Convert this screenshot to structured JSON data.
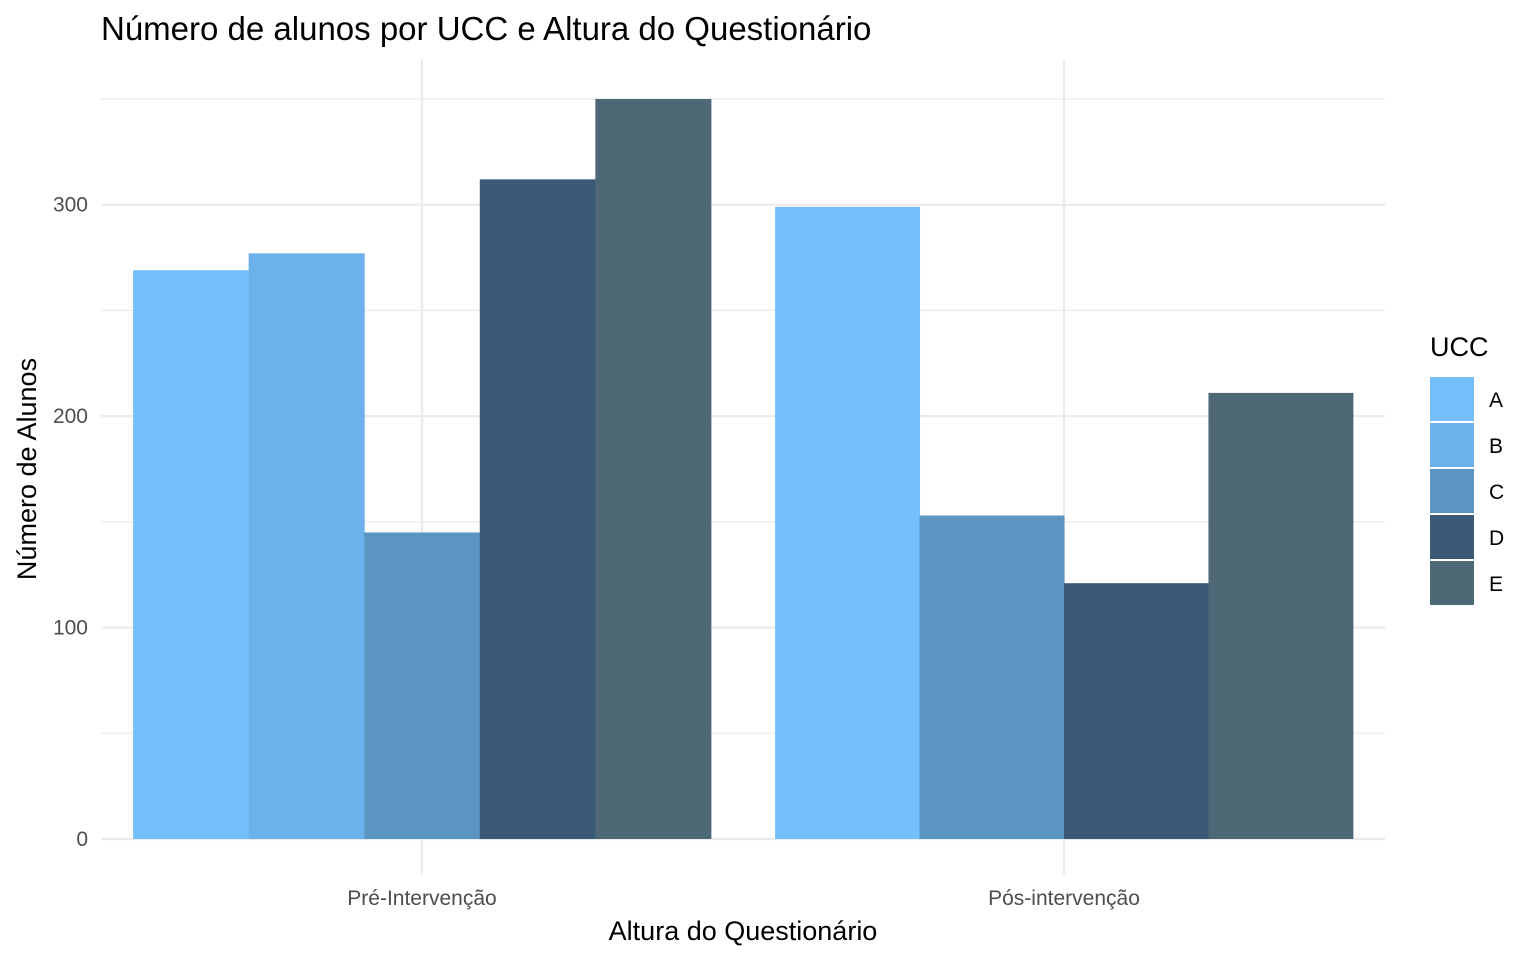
{
  "chart_data": {
    "type": "bar",
    "title": "Número de alunos por UCC e Altura do Questionário",
    "xlabel": "Altura do Questionário",
    "ylabel": "Número de Alunos",
    "ylim": [
      0,
      350
    ],
    "y_ticks": [
      0,
      100,
      200,
      300
    ],
    "grid": true,
    "legend": {
      "title": "UCC",
      "placement": "right"
    },
    "categories": [
      "Pré-Intervenção",
      "Pós-intervenção"
    ],
    "series": [
      {
        "name": "A",
        "color": "#74bffc",
        "values": [
          269,
          299
        ]
      },
      {
        "name": "B",
        "color": "#6cb0ec",
        "values": [
          277,
          null
        ]
      },
      {
        "name": "C",
        "color": "#5b96c2",
        "values": [
          145,
          153
        ]
      },
      {
        "name": "D",
        "color": "#3a5a78",
        "values": [
          312,
          121
        ]
      },
      {
        "name": "E",
        "color": "#4e6876",
        "values": [
          350,
          211
        ]
      }
    ]
  }
}
